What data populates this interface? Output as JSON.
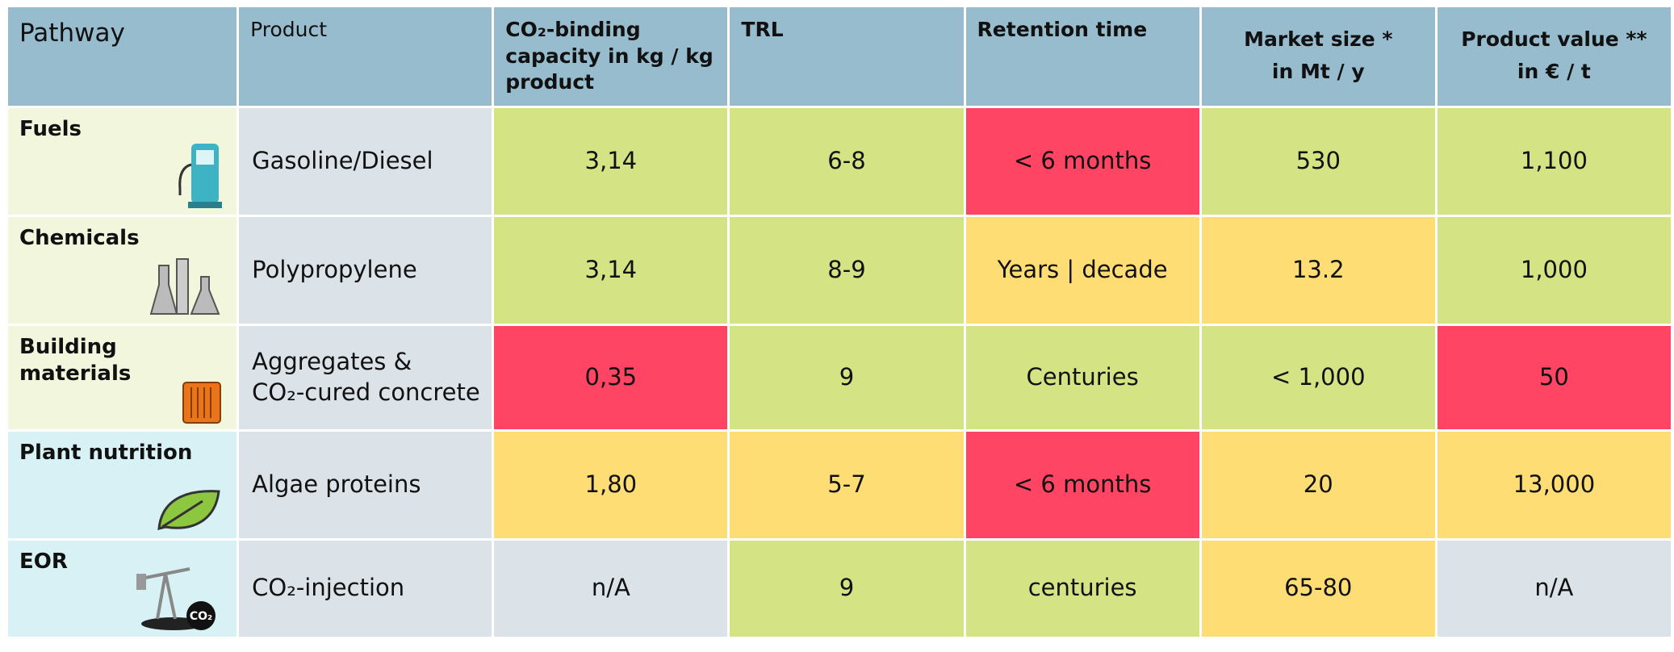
{
  "table": {
    "header": [
      "Pathway",
      "Product",
      "CO₂-binding capacity in kg / kg product",
      "TRL",
      "Retention time",
      "Market size *\nin Mt / y",
      "Product value **\nin € / t"
    ],
    "rows": [
      [
        "Fuels",
        "Gasoline/Diesel",
        "3,14",
        "6-8",
        "< 6 months",
        "530",
        "1,100"
      ],
      [
        "Chemicals",
        "Polypropylene",
        "3,14",
        "8-9",
        "Years | decade",
        "13.2",
        "1,000"
      ],
      [
        "Building materials",
        "Aggregates &\nCO₂-cured concrete",
        "0,35",
        "9",
        "Centuries",
        "< 1,000",
        "50"
      ],
      [
        "Plant nutrition",
        "Algae proteins",
        "1,80",
        "5-7",
        "< 6 months",
        "20",
        "13,000"
      ],
      [
        "EOR",
        "CO₂-injection",
        "n/A",
        "9",
        "centuries",
        "65-80",
        "n/A"
      ]
    ],
    "eor_icon_label": "CO₂"
  }
}
